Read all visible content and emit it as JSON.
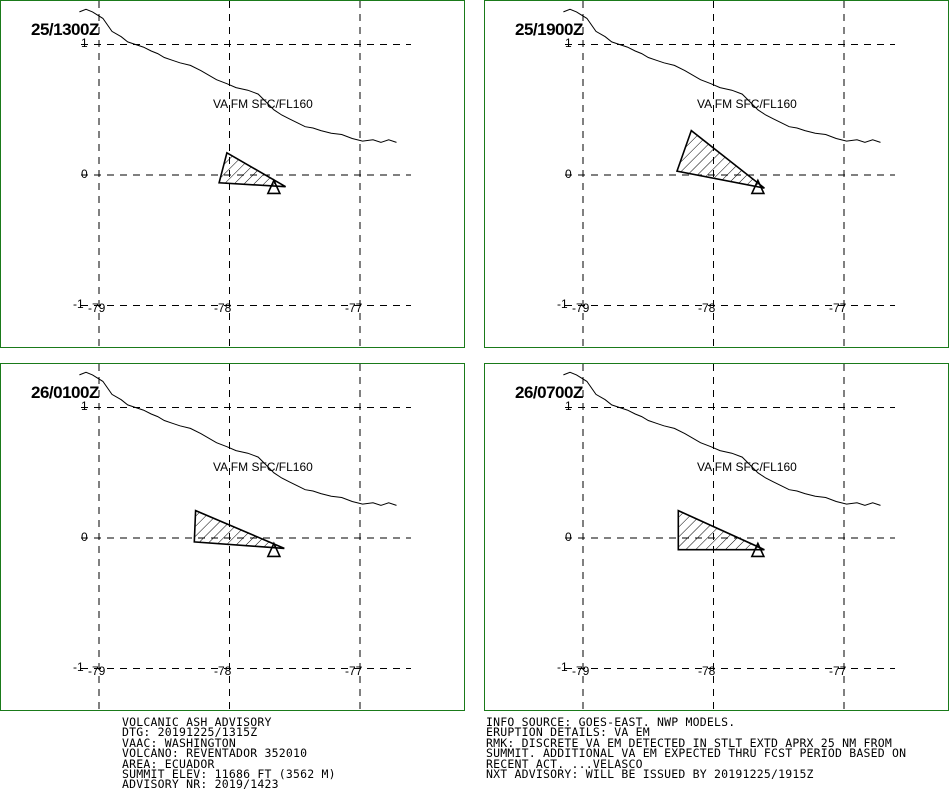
{
  "volcano_mark": "triangle",
  "colors": {
    "frame": "#1a7a1a",
    "line": "#000000"
  },
  "panels": [
    {
      "time": "25/1300Z",
      "label": "VA FM SFC/FL160",
      "y_ticks": [
        "1",
        "0",
        "-1"
      ],
      "x_ticks": [
        "-79",
        "-78",
        "-77"
      ],
      "ash_polygon": [
        [
          -78.02,
          0.17
        ],
        [
          -78.08,
          -0.06
        ],
        [
          -77.57,
          -0.09
        ]
      ]
    },
    {
      "time": "25/1900Z",
      "label": "VA FM SFC/FL160",
      "y_ticks": [
        "1",
        "0",
        "-1"
      ],
      "x_ticks": [
        "-79",
        "-78",
        "-77"
      ],
      "ash_polygon": [
        [
          -78.17,
          0.34
        ],
        [
          -78.28,
          0.03
        ],
        [
          -77.61,
          -0.1
        ]
      ]
    },
    {
      "time": "26/0100Z",
      "label": "VA FM SFC/FL160",
      "y_ticks": [
        "1",
        "0",
        "-1"
      ],
      "x_ticks": [
        "-79",
        "-78",
        "-77"
      ],
      "ash_polygon": [
        [
          -78.26,
          0.21
        ],
        [
          -78.27,
          -0.03
        ],
        [
          -77.58,
          -0.08
        ]
      ]
    },
    {
      "time": "26/0700Z",
      "label": "VA FM SFC/FL160",
      "y_ticks": [
        "1",
        "0",
        "-1"
      ],
      "x_ticks": [
        "-79",
        "-78",
        "-77"
      ],
      "ash_polygon": [
        [
          -78.27,
          0.21
        ],
        [
          -78.27,
          -0.09
        ],
        [
          -77.61,
          -0.09
        ]
      ]
    }
  ],
  "volcano": {
    "name": "REVENTADOR",
    "lon": -77.66,
    "lat": -0.08
  },
  "coastline": [
    [
      -79.15,
      1.25
    ],
    [
      -79.1,
      1.27
    ],
    [
      -79.05,
      1.25
    ],
    [
      -78.97,
      1.2
    ],
    [
      -78.9,
      1.1
    ],
    [
      -78.83,
      1.06
    ],
    [
      -78.78,
      1.02
    ],
    [
      -78.72,
      1.0
    ],
    [
      -78.66,
      0.98
    ],
    [
      -78.6,
      0.95
    ],
    [
      -78.55,
      0.93
    ],
    [
      -78.5,
      0.9
    ],
    [
      -78.44,
      0.88
    ],
    [
      -78.38,
      0.86
    ],
    [
      -78.3,
      0.84
    ],
    [
      -78.22,
      0.8
    ],
    [
      -78.1,
      0.73
    ],
    [
      -78.02,
      0.7
    ],
    [
      -77.95,
      0.67
    ],
    [
      -77.86,
      0.65
    ],
    [
      -77.78,
      0.62
    ],
    [
      -77.72,
      0.56
    ],
    [
      -77.66,
      0.5
    ],
    [
      -77.6,
      0.46
    ],
    [
      -77.54,
      0.43
    ],
    [
      -77.48,
      0.4
    ],
    [
      -77.42,
      0.37
    ],
    [
      -77.36,
      0.36
    ],
    [
      -77.3,
      0.34
    ],
    [
      -77.22,
      0.32
    ],
    [
      -77.14,
      0.31
    ],
    [
      -77.06,
      0.28
    ],
    [
      -76.98,
      0.26
    ],
    [
      -76.9,
      0.27
    ],
    [
      -76.84,
      0.25
    ],
    [
      -76.78,
      0.27
    ],
    [
      -76.72,
      0.25
    ]
  ],
  "advisory_left": [
    "VOLCANIC ASH ADVISORY",
    "DTG: 20191225/1315Z",
    "VAAC: WASHINGTON",
    "VOLCANO: REVENTADOR 352010",
    "AREA: ECUADOR",
    "SUMMIT ELEV: 11686 FT (3562 M)",
    "ADVISORY NR: 2019/1423"
  ],
  "advisory_right": [
    "INFO SOURCE: GOES-EAST. NWP MODELS.",
    "ERUPTION DETAILS: VA EM",
    "RMK: DISCRETE VA EM DETECTED IN STLT EXTD APRX 25 NM FROM",
    "SUMMIT. ADDITIONAL VA EM EXPECTED THRU FCST PERIOD BASED ON",
    "RECENT ACT. ...VELASCO",
    "NXT ADVISORY: WILL BE ISSUED BY 20191225/1915Z"
  ]
}
